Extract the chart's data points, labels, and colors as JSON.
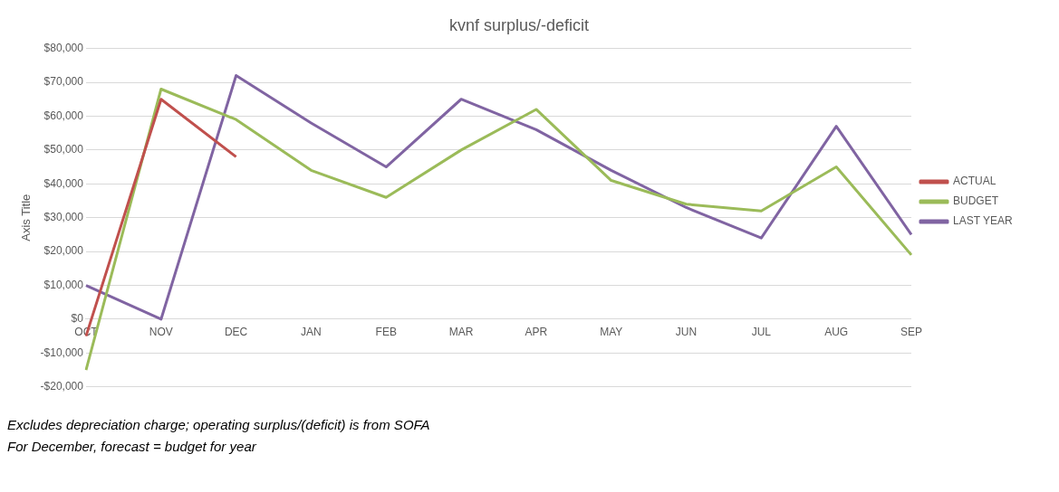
{
  "chart_data": {
    "type": "line",
    "title": "kvnf surplus/-deficit",
    "ylabel": "Axis Title",
    "categories": [
      "OCT",
      "NOV",
      "DEC",
      "JAN",
      "FEB",
      "MAR",
      "APR",
      "MAY",
      "JUN",
      "JUL",
      "AUG",
      "SEP"
    ],
    "series": [
      {
        "name": "ACTUAL",
        "color": "#c0504d",
        "values": [
          -5000,
          65000,
          48000,
          null,
          null,
          null,
          null,
          null,
          null,
          null,
          null,
          null
        ]
      },
      {
        "name": "BUDGET",
        "color": "#9bbb59",
        "values": [
          -15000,
          68000,
          59000,
          44000,
          36000,
          50000,
          62000,
          41000,
          34000,
          32000,
          45000,
          19000
        ]
      },
      {
        "name": "LAST YEAR",
        "color": "#8064a2",
        "values": [
          10000,
          0,
          72000,
          58000,
          45000,
          65000,
          56000,
          44000,
          33000,
          24000,
          57000,
          25000
        ]
      }
    ],
    "ylim": [
      -20000,
      80000
    ],
    "yticks": [
      {
        "value": -20000,
        "label": "-$20,000"
      },
      {
        "value": -10000,
        "label": "-$10,000"
      },
      {
        "value": 0,
        "label": "$0"
      },
      {
        "value": 10000,
        "label": "$10,000"
      },
      {
        "value": 20000,
        "label": "$20,000"
      },
      {
        "value": 30000,
        "label": "$30,000"
      },
      {
        "value": 40000,
        "label": "$40,000"
      },
      {
        "value": 50000,
        "label": "$50,000"
      },
      {
        "value": 60000,
        "label": "$60,000"
      },
      {
        "value": 70000,
        "label": "$70,000"
      },
      {
        "value": 80000,
        "label": "$80,000"
      }
    ],
    "grid": "y",
    "legend": "right",
    "marker": "none",
    "line_style": "solid",
    "annotations": [
      "Excludes depreciation charge; operating surplus/(deficit) is from SOFA",
      "For December, forecast = budget for year"
    ]
  }
}
